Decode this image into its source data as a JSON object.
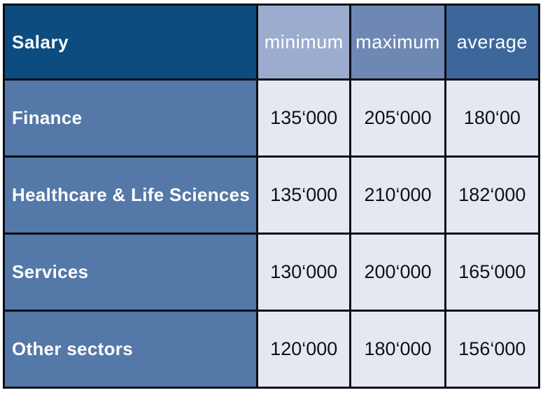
{
  "chart_data": {
    "type": "table",
    "title": "Salary",
    "columns": [
      "Salary",
      "minimum",
      "maximum",
      "average"
    ],
    "rows": [
      [
        "Finance",
        "135‘000",
        "205‘000",
        "180‘00"
      ],
      [
        "Healthcare & Life Sciences",
        "135‘000",
        "210‘000",
        "182‘000"
      ],
      [
        "Services",
        "130‘000",
        "200‘000",
        "165‘000"
      ],
      [
        "Other sectors",
        "120‘000",
        "180‘000",
        "156‘000"
      ]
    ]
  },
  "table": {
    "corner_label": "Salary",
    "columns": [
      {
        "label": "minimum",
        "bg": "#9cacce"
      },
      {
        "label": "maximum",
        "bg": "#6e88b3"
      },
      {
        "label": "average",
        "bg": "#3d679b"
      }
    ],
    "rows": [
      {
        "label": "Finance",
        "minimum": "135‘000",
        "maximum": "205‘000",
        "average": "180‘00"
      },
      {
        "label": "Healthcare & Life Sciences",
        "minimum": "135‘000",
        "maximum": "210‘000",
        "average": "182‘000"
      },
      {
        "label": "Services",
        "minimum": "130‘000",
        "maximum": "200‘000",
        "average": "165‘000"
      },
      {
        "label": "Other sectors",
        "minimum": "120‘000",
        "maximum": "180‘000",
        "average": "156‘000"
      }
    ]
  },
  "colors": {
    "corner_bg": "#0d4c80",
    "header_minimum_bg": "#9cacce",
    "header_maximum_bg": "#6e88b3",
    "header_average_bg": "#3d679b",
    "row_label_bg": "#5478a8",
    "data_cell_bg": "#e5e8f1",
    "border": "#0b0d16",
    "header_text": "#ffffff",
    "data_text": "#111111",
    "page_bg": "#ffffff"
  }
}
